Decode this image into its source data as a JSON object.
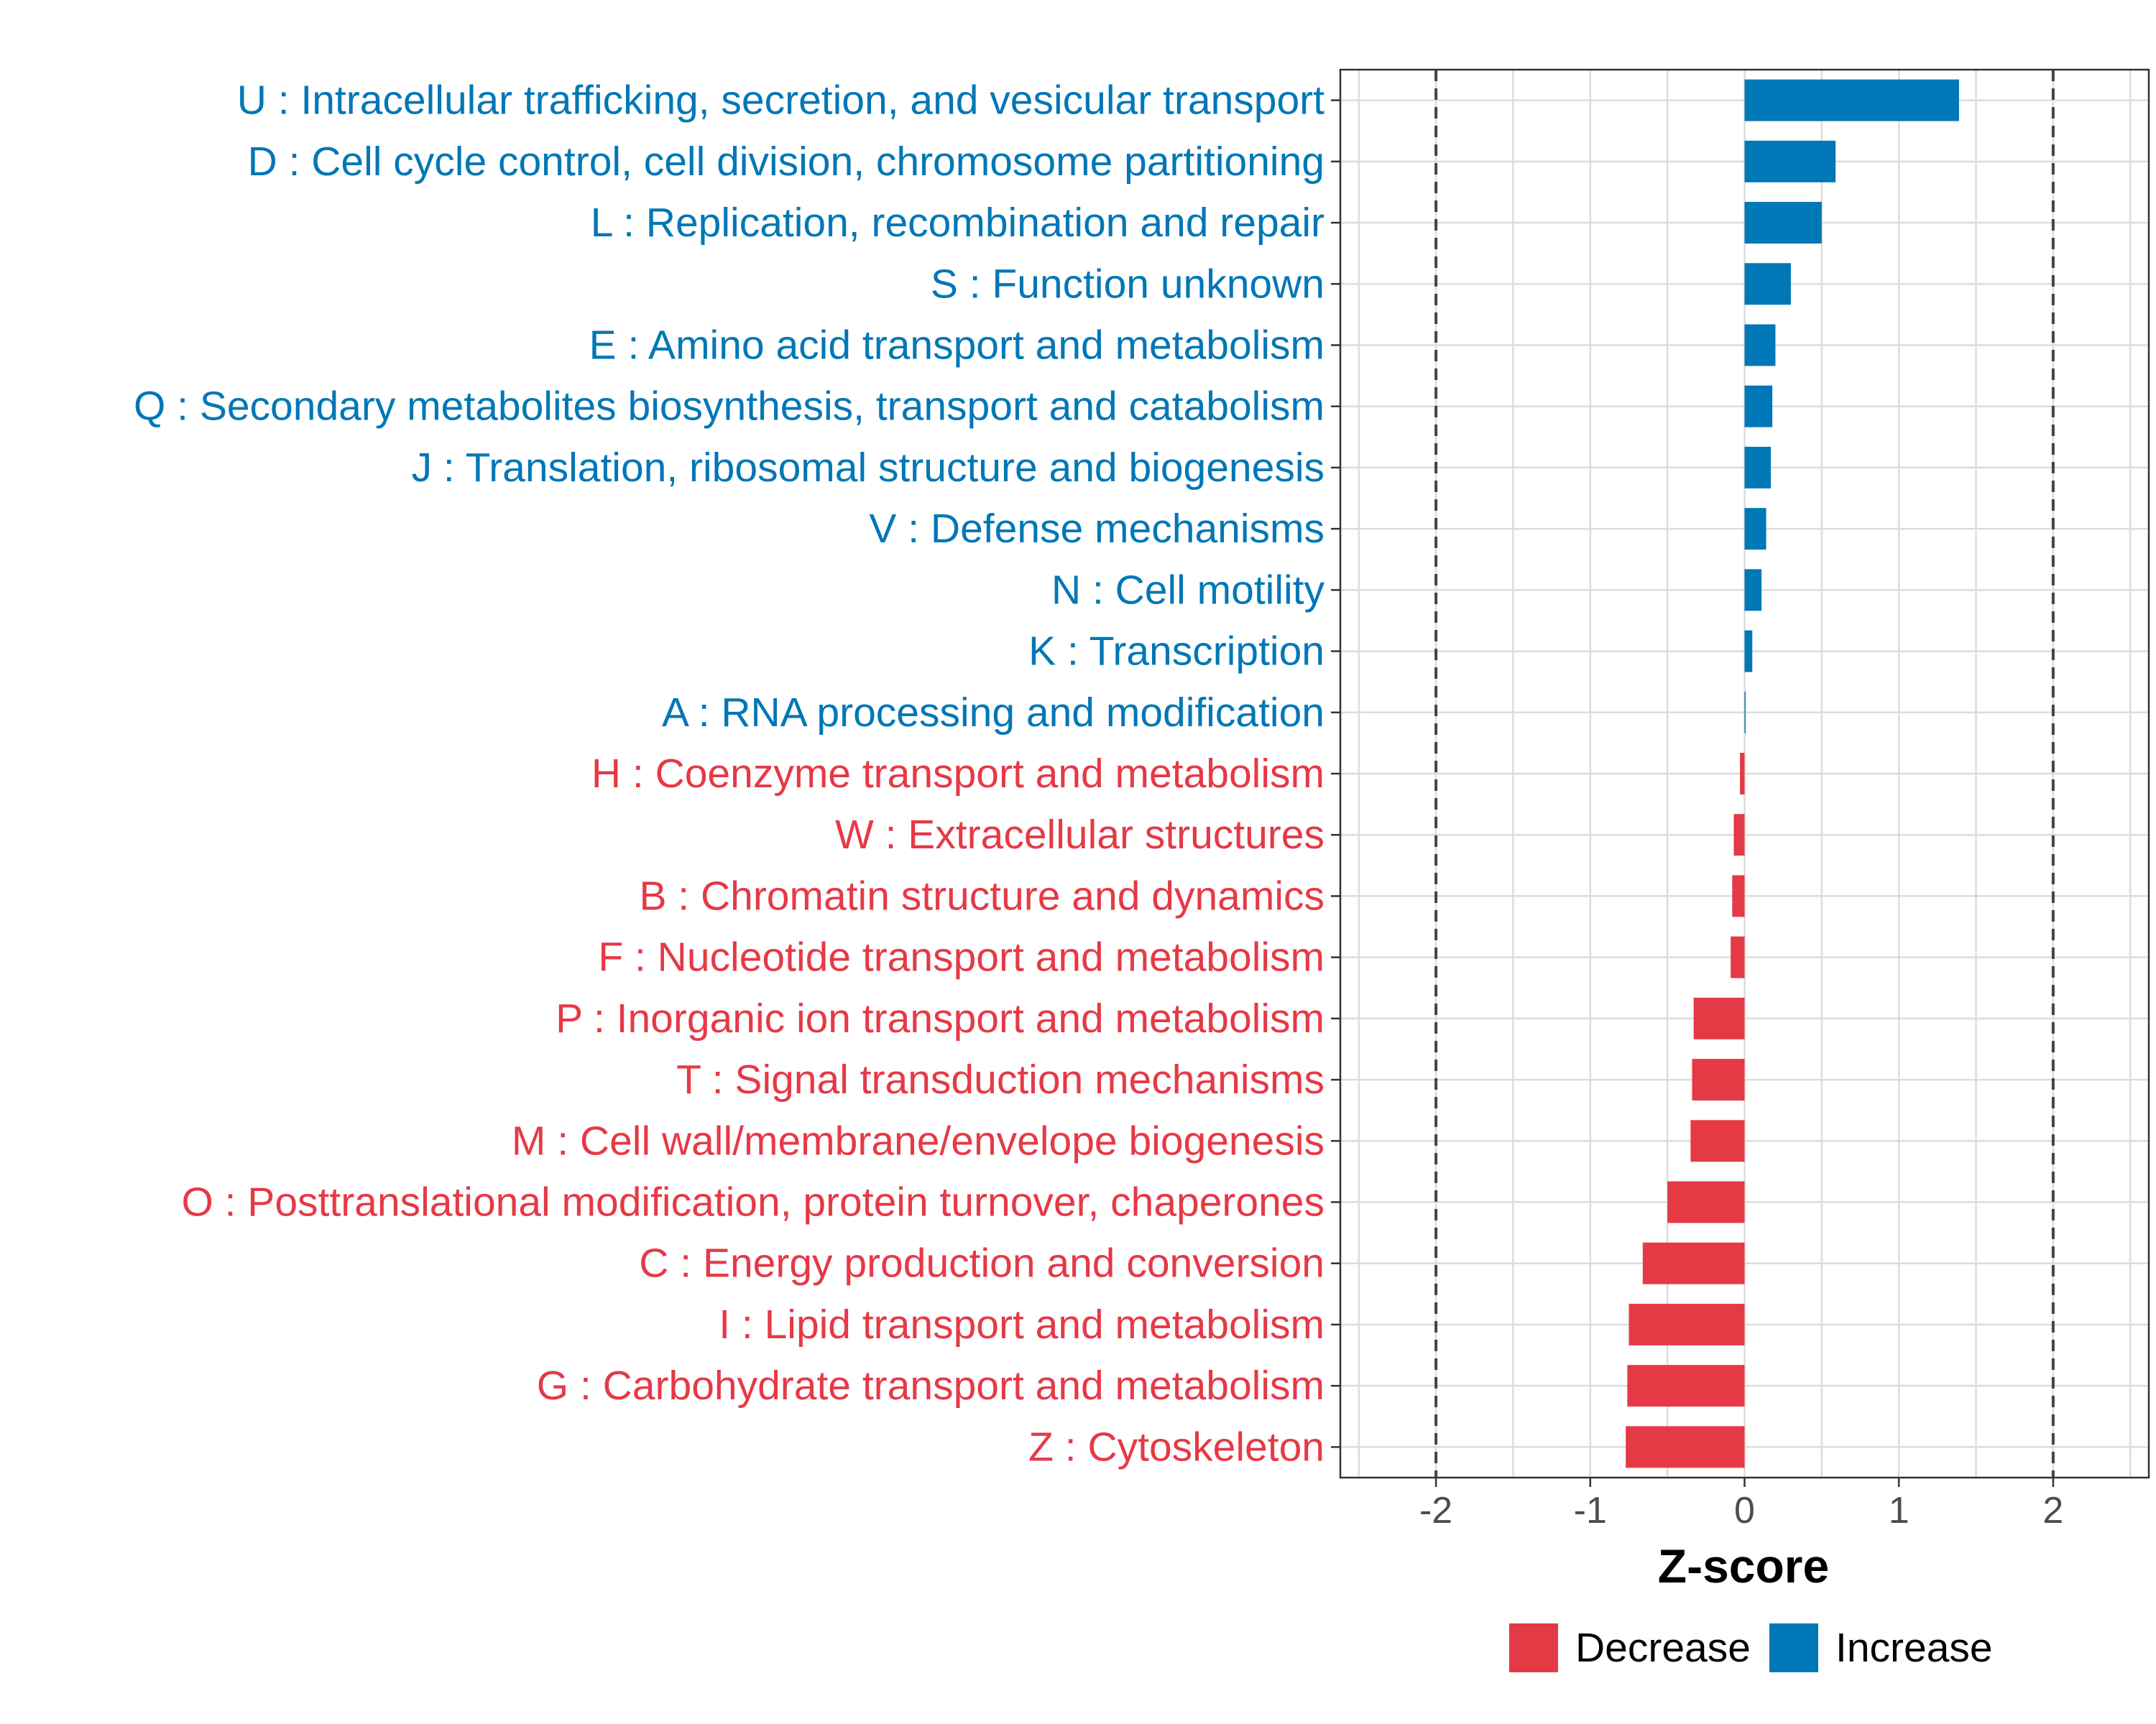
{
  "chart_data": {
    "type": "bar",
    "orientation": "horizontal",
    "xlabel": "Z-score",
    "xlim": [
      -2.62,
      2.62
    ],
    "xticks": [
      -2,
      -1,
      0,
      1,
      2
    ],
    "tick_labels": [
      "-2",
      "-1",
      "0",
      "1",
      "2"
    ],
    "reference_lines": [
      -2,
      2
    ],
    "grid": true,
    "legend_position": "bottom",
    "colors": {
      "Decrease": "#E63946",
      "Increase": "#0077B6"
    },
    "legend": [
      {
        "name": "Decrease",
        "label": "Decrease"
      },
      {
        "name": "Increase",
        "label": "Increase"
      }
    ],
    "categories": [
      "U : Intracellular trafficking, secretion, and vesicular transport",
      "D : Cell cycle control, cell division, chromosome partitioning",
      "L : Replication, recombination and repair",
      "S : Function unknown",
      "E : Amino acid transport and metabolism",
      "Q : Secondary metabolites biosynthesis, transport and catabolism",
      "J : Translation, ribosomal structure and biogenesis",
      "V : Defense mechanisms",
      "N : Cell motility",
      "K : Transcription",
      "A : RNA processing and modification",
      "H : Coenzyme transport and metabolism",
      "W : Extracellular structures",
      "B : Chromatin structure and dynamics",
      "F : Nucleotide transport and metabolism",
      "P : Inorganic ion transport and metabolism",
      "T : Signal transduction mechanisms",
      "M : Cell wall/membrane/envelope biogenesis",
      "O : Posttranslational modification, protein turnover, chaperones",
      "C : Energy production and conversion",
      "I : Lipid transport and metabolism",
      "G : Carbohydrate transport and metabolism",
      "Z : Cytoskeleton"
    ],
    "values": [
      1.39,
      0.59,
      0.5,
      0.3,
      0.2,
      0.18,
      0.17,
      0.14,
      0.11,
      0.05,
      0.005,
      -0.03,
      -0.07,
      -0.08,
      -0.09,
      -0.33,
      -0.34,
      -0.35,
      -0.5,
      -0.66,
      -0.75,
      -0.76,
      -0.77
    ],
    "groups": [
      "Increase",
      "Increase",
      "Increase",
      "Increase",
      "Increase",
      "Increase",
      "Increase",
      "Increase",
      "Increase",
      "Increase",
      "Increase",
      "Decrease",
      "Decrease",
      "Decrease",
      "Decrease",
      "Decrease",
      "Decrease",
      "Decrease",
      "Decrease",
      "Decrease",
      "Decrease",
      "Decrease",
      "Decrease"
    ]
  }
}
